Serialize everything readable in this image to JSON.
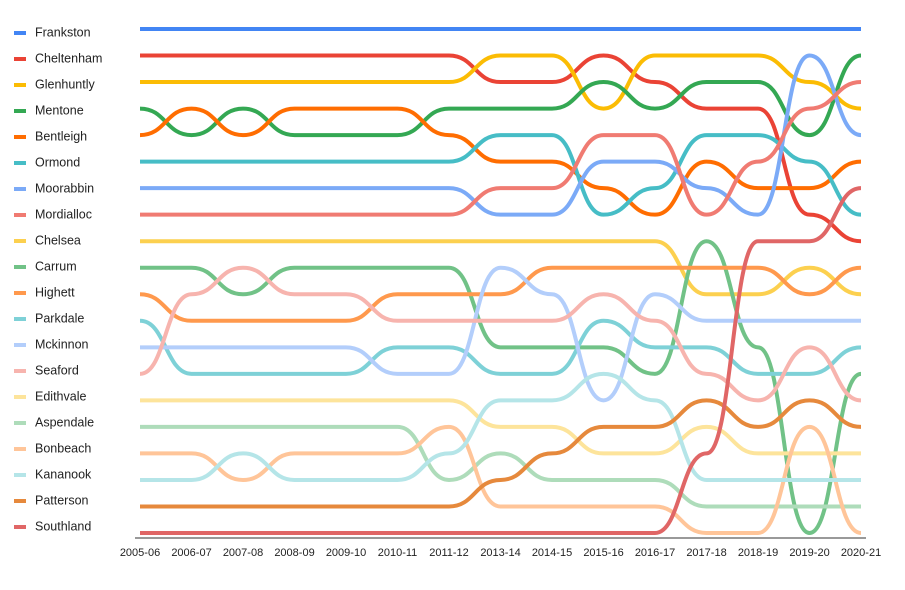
{
  "chart_data": {
    "type": "bump",
    "categories": [
      "2005-06",
      "2006-07",
      "2007-08",
      "2008-09",
      "2009-10",
      "2010-11",
      "2011-12",
      "2013-14",
      "2014-15",
      "2015-16",
      "2016-17",
      "2017-18",
      "2018-19",
      "2019-20",
      "2020-21"
    ],
    "ylim": [
      1,
      20
    ],
    "inverted": true,
    "legend": "left",
    "series": [
      {
        "name": "Frankston",
        "color": "#4285f4",
        "values": [
          1,
          1,
          1,
          1,
          1,
          1,
          1,
          1,
          1,
          1,
          1,
          1,
          1,
          1,
          1
        ]
      },
      {
        "name": "Cheltenham",
        "color": "#ea4335",
        "values": [
          2,
          2,
          2,
          2,
          2,
          2,
          2,
          3,
          3,
          2,
          3,
          4,
          4,
          8,
          9
        ]
      },
      {
        "name": "Glenhuntly",
        "color": "#fbbc04",
        "values": [
          3,
          3,
          3,
          3,
          3,
          3,
          3,
          2,
          2,
          4,
          2,
          2,
          2,
          3,
          4
        ]
      },
      {
        "name": "Mentone",
        "color": "#34a853",
        "values": [
          4,
          5,
          4,
          5,
          5,
          5,
          4,
          4,
          4,
          3,
          4,
          3,
          3,
          5,
          2
        ]
      },
      {
        "name": "Bentleigh",
        "color": "#ff6d01",
        "values": [
          5,
          4,
          5,
          4,
          4,
          4,
          5,
          6,
          6,
          7,
          8,
          6,
          7,
          7,
          6
        ]
      },
      {
        "name": "Ormond",
        "color": "#46bdc6",
        "values": [
          6,
          6,
          6,
          6,
          6,
          6,
          6,
          5,
          5,
          8,
          7,
          5,
          5,
          6,
          8
        ]
      },
      {
        "name": "Moorabbin",
        "color": "#7baaf7",
        "values": [
          7,
          7,
          7,
          7,
          7,
          7,
          7,
          8,
          8,
          6,
          6,
          7,
          8,
          2,
          5
        ]
      },
      {
        "name": "Mordialloc",
        "color": "#f07b72",
        "values": [
          8,
          8,
          8,
          8,
          8,
          8,
          8,
          7,
          7,
          5,
          5,
          8,
          6,
          4,
          3
        ]
      },
      {
        "name": "Chelsea",
        "color": "#fcd04f",
        "values": [
          9,
          9,
          9,
          9,
          9,
          9,
          9,
          9,
          9,
          9,
          9,
          11,
          11,
          10,
          11
        ]
      },
      {
        "name": "Carrum",
        "color": "#71c287",
        "values": [
          10,
          10,
          11,
          10,
          10,
          10,
          10,
          13,
          13,
          13,
          14,
          9,
          13,
          20,
          14
        ]
      },
      {
        "name": "Highett",
        "color": "#ff994d",
        "values": [
          11,
          12,
          12,
          12,
          12,
          11,
          11,
          11,
          10,
          10,
          10,
          10,
          10,
          11,
          10
        ]
      },
      {
        "name": "Parkdale",
        "color": "#7ed1d7",
        "values": [
          12,
          14,
          14,
          14,
          14,
          13,
          13,
          14,
          14,
          12,
          13,
          13,
          14,
          14,
          13
        ]
      },
      {
        "name": "Mckinnon",
        "color": "#b3cefb",
        "values": [
          13,
          13,
          13,
          13,
          13,
          14,
          14,
          10,
          11,
          15,
          11,
          12,
          12,
          12,
          12
        ]
      },
      {
        "name": "Seaford",
        "color": "#f7b4ae",
        "values": [
          14,
          11,
          10,
          11,
          11,
          12,
          12,
          12,
          12,
          11,
          12,
          14,
          15,
          13,
          15
        ]
      },
      {
        "name": "Edithvale",
        "color": "#fde49b",
        "values": [
          15,
          15,
          15,
          15,
          15,
          15,
          15,
          16,
          16,
          17,
          17,
          16,
          17,
          17,
          17
        ]
      },
      {
        "name": "Aspendale",
        "color": "#aedcba",
        "values": [
          16,
          16,
          16,
          16,
          16,
          16,
          18,
          17,
          18,
          18,
          18,
          19,
          19,
          19,
          19
        ]
      },
      {
        "name": "Bonbeach",
        "color": "#ffc599",
        "values": [
          17,
          17,
          18,
          17,
          17,
          17,
          16,
          19,
          19,
          19,
          19,
          20,
          20,
          16,
          20
        ]
      },
      {
        "name": "Kananook",
        "color": "#b5e5e8",
        "values": [
          18,
          18,
          17,
          18,
          18,
          18,
          17,
          15,
          15,
          14,
          15,
          18,
          18,
          18,
          18
        ]
      },
      {
        "name": "Patterson",
        "color": "#e6893c",
        "values": [
          19,
          19,
          19,
          19,
          19,
          19,
          19,
          18,
          17,
          16,
          16,
          15,
          16,
          15,
          16
        ]
      },
      {
        "name": "Southland",
        "color": "#e06666",
        "values": [
          20,
          20,
          20,
          20,
          20,
          20,
          20,
          20,
          20,
          20,
          20,
          17,
          9,
          9,
          7
        ]
      }
    ]
  }
}
